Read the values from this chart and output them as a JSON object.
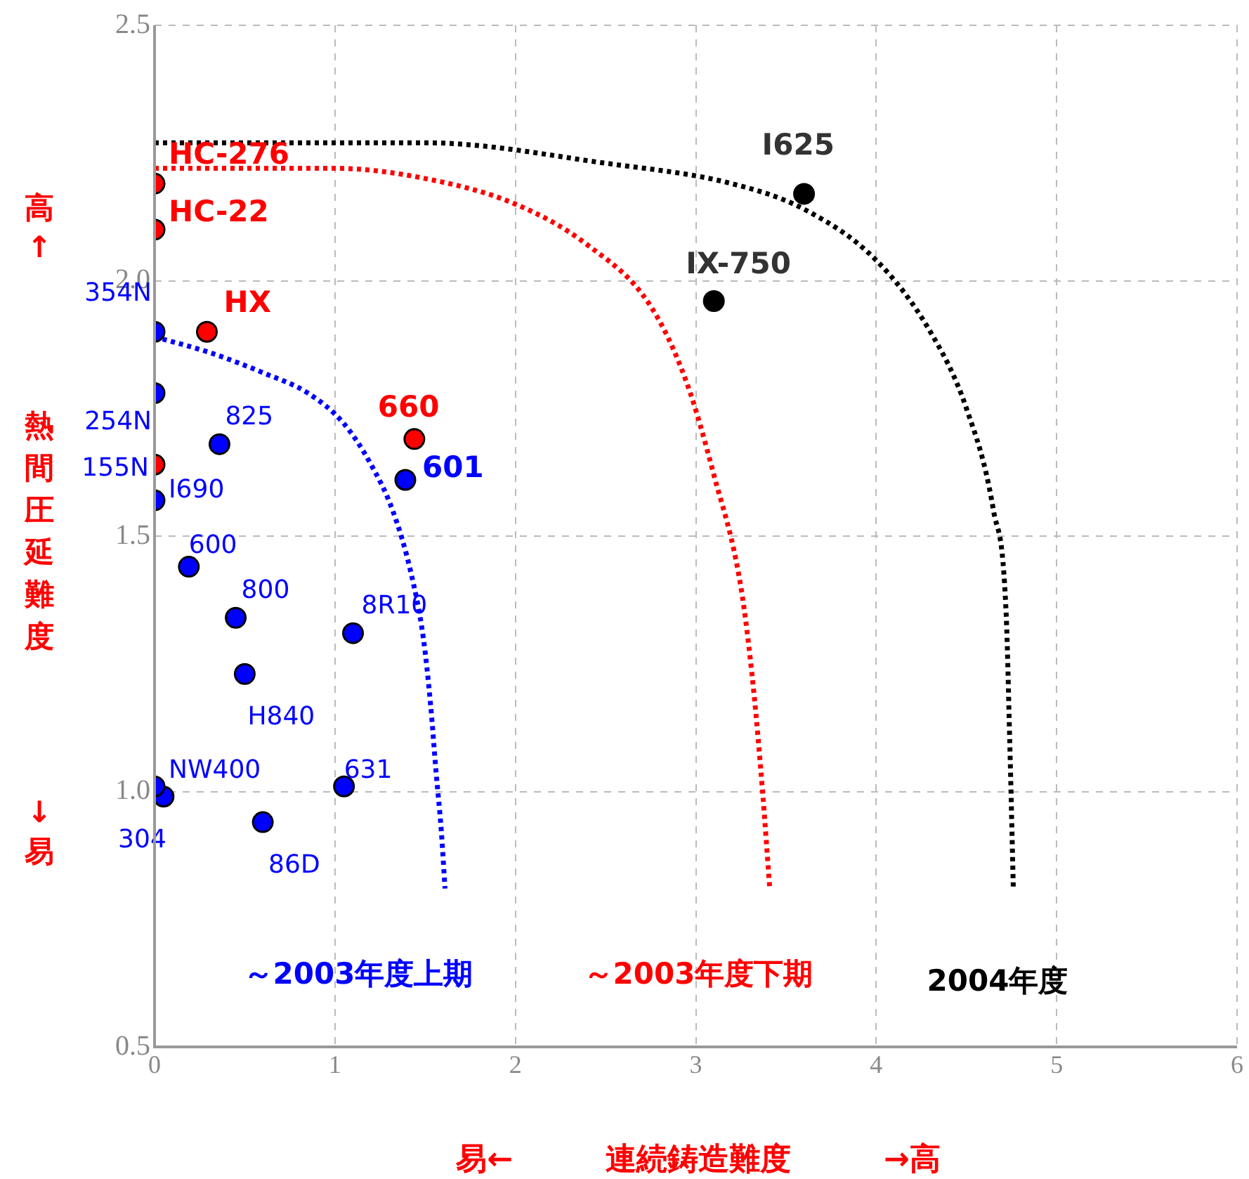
{
  "chart_data": {
    "type": "scatter",
    "xlabel": "易←　　　連続鋳造難度　　　→高",
    "ylabel": "熱間圧延難度",
    "xlim": [
      0,
      6
    ],
    "xticks": [
      0,
      1,
      2,
      3,
      4,
      5,
      6
    ],
    "ylim": [
      0.5,
      2.5
    ],
    "yticks": [
      {
        "value": 0.5,
        "label": "0.5"
      },
      {
        "value": 1,
        "label": "1.0"
      },
      {
        "value": 1.5,
        "label": "1.5"
      },
      {
        "value": 2,
        "label": "2.0"
      },
      {
        "value": 2.5,
        "label": "2.5"
      }
    ],
    "grid": true,
    "legend": false,
    "marker": "circle",
    "series": [
      {
        "type": "scatter",
        "color": "#ff0000",
        "x": [
          0,
          0,
          0.29,
          0,
          1.44
        ],
        "values": [
          2.19,
          2.1,
          1.9,
          1.64,
          1.69
        ]
      },
      {
        "type": "scatter",
        "color": "#0000ff",
        "x": [
          0,
          0,
          0,
          0.36,
          1.39,
          0.19,
          0.45,
          1.1,
          0.5,
          0.05,
          0,
          1.05,
          0.6
        ],
        "values": [
          1.9,
          1.78,
          1.57,
          1.68,
          1.61,
          1.44,
          1.34,
          1.31,
          1.23,
          0.99,
          1.01,
          1.01,
          0.94
        ]
      },
      {
        "type": "scatter",
        "color": "#000000",
        "x": [
          3.6,
          3.1
        ],
        "values": [
          2.17,
          1.96
        ]
      },
      {
        "type": "line",
        "name": "～2003年度上期",
        "color": "#0000ff",
        "line_style": "dotted",
        "marker": "none",
        "x": [
          0,
          0.3,
          0.6,
          0.85,
          1.05,
          1.2,
          1.32,
          1.42,
          1.49,
          1.53,
          1.56,
          1.59,
          1.61
        ],
        "values": [
          1.89,
          1.86,
          1.82,
          1.78,
          1.72,
          1.64,
          1.55,
          1.43,
          1.3,
          1.17,
          1.04,
          0.92,
          0.81
        ]
      },
      {
        "type": "line",
        "name": "～2003年度下期",
        "color": "#ff0000",
        "line_style": "dotted",
        "marker": "none",
        "x": [
          0,
          1.0,
          1.5,
          2.0,
          2.4,
          2.75,
          2.95,
          3.1,
          3.25,
          3.32,
          3.37,
          3.41
        ],
        "values": [
          2.22,
          2.22,
          2.2,
          2.15,
          2.07,
          1.95,
          1.8,
          1.62,
          1.4,
          1.2,
          1.0,
          0.81
        ]
      },
      {
        "type": "line",
        "name": "2004年度",
        "color": "#000000",
        "line_style": "dotted",
        "marker": "none",
        "x": [
          0,
          1.5,
          2.5,
          3.2,
          3.6,
          4.0,
          4.3,
          4.5,
          4.65,
          4.72,
          4.74,
          4.76
        ],
        "values": [
          2.27,
          2.27,
          2.23,
          2.19,
          2.14,
          2.04,
          1.9,
          1.75,
          1.55,
          1.35,
          1.1,
          0.81
        ]
      }
    ],
    "annotations": [
      {
        "text": "HC-276",
        "x": 0,
        "y": 2.19
      },
      {
        "text": "HC-22",
        "x": 0,
        "y": 2.1
      },
      {
        "text": "HX",
        "x": 0.29,
        "y": 1.9
      },
      {
        "text": "354N",
        "x": 0,
        "y": 1.9
      },
      {
        "text": "254N",
        "x": 0,
        "y": 1.78
      },
      {
        "text": "155N",
        "x": 0,
        "y": 1.64
      },
      {
        "text": "I690",
        "x": 0,
        "y": 1.57
      },
      {
        "text": "825",
        "x": 0.36,
        "y": 1.68
      },
      {
        "text": "660",
        "x": 1.44,
        "y": 1.69
      },
      {
        "text": "601",
        "x": 1.39,
        "y": 1.61
      },
      {
        "text": "600",
        "x": 0.19,
        "y": 1.44
      },
      {
        "text": "800",
        "x": 0.45,
        "y": 1.34
      },
      {
        "text": "8R10",
        "x": 1.1,
        "y": 1.31
      },
      {
        "text": "H840",
        "x": 0.5,
        "y": 1.23
      },
      {
        "text": "NW400",
        "x": 0,
        "y": 1.01
      },
      {
        "text": "304",
        "x": 0.05,
        "y": 0.99
      },
      {
        "text": "631",
        "x": 1.05,
        "y": 1.01
      },
      {
        "text": "86D",
        "x": 0.6,
        "y": 0.94
      },
      {
        "text": "I625",
        "x": 3.6,
        "y": 2.17
      },
      {
        "text": "IX-750",
        "x": 3.1,
        "y": 1.96
      },
      "高↑",
      "↓易"
    ]
  }
}
